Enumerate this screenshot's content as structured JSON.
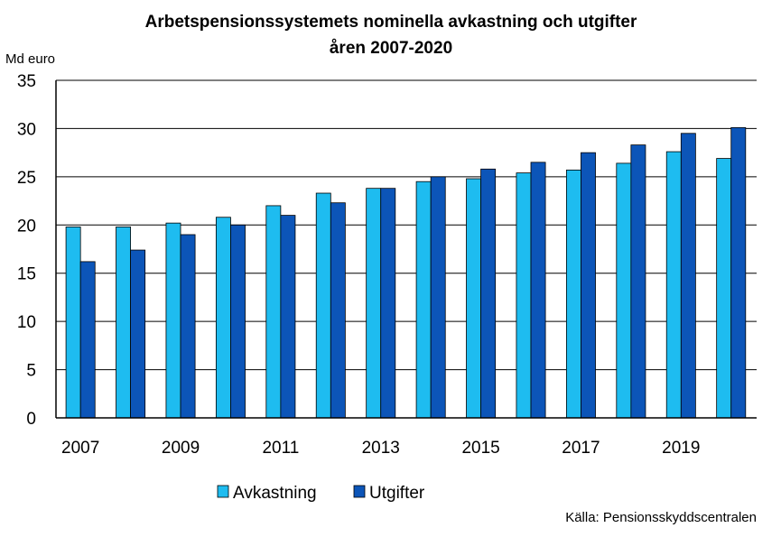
{
  "chart_data": {
    "type": "bar",
    "title": "Arbetspensionssystemets nominella avkastning och utgifter",
    "subtitle": "åren 2007-2020",
    "ylabel": "Md euro",
    "xlabel": "",
    "source": "Källa: Pensionsskyddscentralen",
    "categories": [
      "2007",
      "2008",
      "2009",
      "2010",
      "2011",
      "2012",
      "2013",
      "2014",
      "2015",
      "2016",
      "2017",
      "2018",
      "2019",
      "2020"
    ],
    "xtick_labels": [
      "2007",
      "2009",
      "2011",
      "2013",
      "2015",
      "2017",
      "2019"
    ],
    "yticks": [
      0,
      5,
      10,
      15,
      20,
      25,
      30,
      35
    ],
    "ylim": [
      0,
      35
    ],
    "grid": true,
    "legend_position": "bottom",
    "series": [
      {
        "name": "Avkastning",
        "color": "#1ebcf0",
        "values": [
          19.8,
          19.8,
          20.2,
          20.8,
          22.0,
          23.3,
          23.8,
          24.5,
          24.8,
          25.4,
          25.7,
          26.4,
          27.6,
          26.9
        ]
      },
      {
        "name": "Utgifter",
        "color": "#0c55b8",
        "values": [
          16.2,
          17.4,
          19.0,
          20.0,
          21.0,
          22.3,
          23.8,
          25.0,
          25.8,
          26.5,
          27.5,
          28.3,
          29.5,
          30.1
        ]
      }
    ]
  }
}
